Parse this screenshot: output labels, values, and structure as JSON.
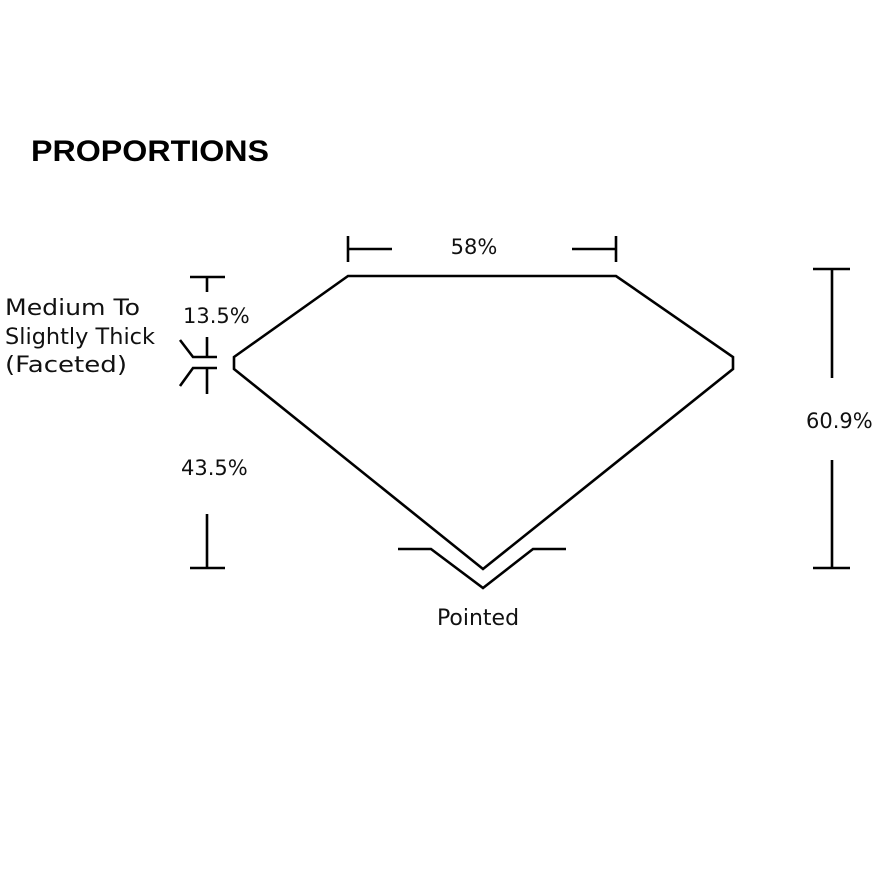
{
  "title": "PROPORTIONS",
  "labels": {
    "table": "58%",
    "crown": "13.5%",
    "pavilion": "43.5%",
    "depth": "60.9%",
    "girdle_lines": [
      "Medium To",
      "Slightly Thick",
      "(Faceted)"
    ],
    "culet": "Pointed"
  },
  "colors": {
    "line": "#000000",
    "background": "#ffffff"
  }
}
